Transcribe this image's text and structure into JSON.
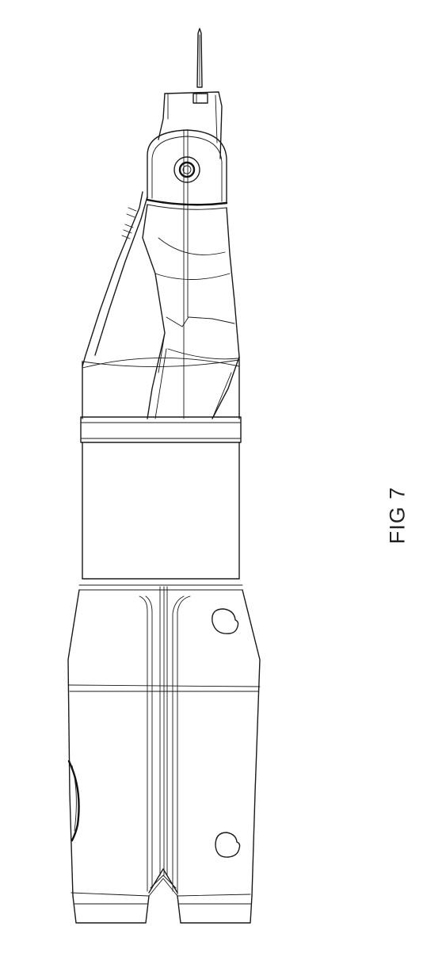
{
  "figure": {
    "label": "FIG 7"
  },
  "colors": {
    "line": "#1a1a1a",
    "background": "#ffffff"
  }
}
